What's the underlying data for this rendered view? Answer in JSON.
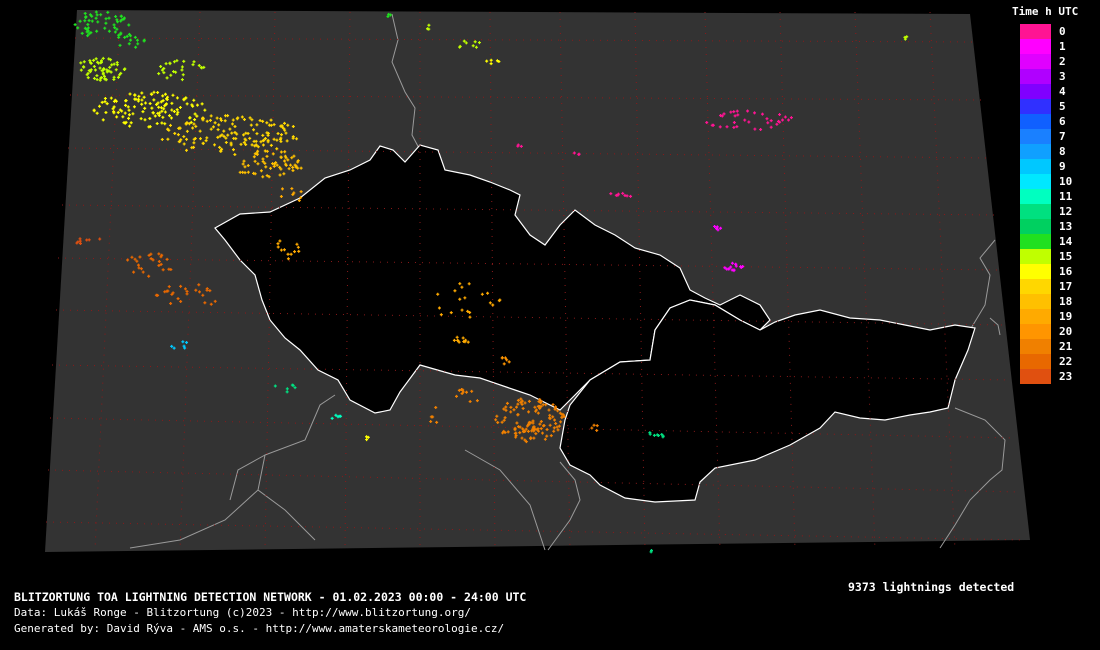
{
  "legend": {
    "title": "Time h UTC",
    "hours": [
      {
        "label": "0",
        "color": "#ff1493"
      },
      {
        "label": "1",
        "color": "#ff00ff"
      },
      {
        "label": "2",
        "color": "#e000ff"
      },
      {
        "label": "3",
        "color": "#b000ff"
      },
      {
        "label": "4",
        "color": "#8000ff"
      },
      {
        "label": "5",
        "color": "#3030ff"
      },
      {
        "label": "6",
        "color": "#1060ff"
      },
      {
        "label": "7",
        "color": "#1a80ff"
      },
      {
        "label": "8",
        "color": "#10a0ff"
      },
      {
        "label": "9",
        "color": "#00c8ff"
      },
      {
        "label": "10",
        "color": "#00e8ff"
      },
      {
        "label": "11",
        "color": "#00ffc0"
      },
      {
        "label": "12",
        "color": "#00e080"
      },
      {
        "label": "13",
        "color": "#00d060"
      },
      {
        "label": "14",
        "color": "#20e020"
      },
      {
        "label": "15",
        "color": "#c0ff00"
      },
      {
        "label": "16",
        "color": "#ffff00"
      },
      {
        "label": "17",
        "color": "#ffd700"
      },
      {
        "label": "18",
        "color": "#ffc000"
      },
      {
        "label": "19",
        "color": "#ffaa00"
      },
      {
        "label": "20",
        "color": "#ff9500"
      },
      {
        "label": "21",
        "color": "#f08000"
      },
      {
        "label": "22",
        "color": "#e86800"
      },
      {
        "label": "23",
        "color": "#e05010"
      }
    ]
  },
  "summary": {
    "count_text": "9373 lightnings detected"
  },
  "footer": {
    "title": "BLITZORTUNG TOA LIGHTNING DETECTION NETWORK - 01.02.2023  00:00 - 24:00 UTC",
    "data_line": "Data: Lukáš Ronge - Blitzortung (c)2023  -  http://www.blitzortung.org/",
    "generated_line": "Generated by: David Rýva - AMS o.s.  -  http://www.amaterskameteorologie.cz/"
  },
  "map": {
    "background_color": "#333333",
    "border_color": "#9a9a9a",
    "highlight_border_color": "#ffffff",
    "grid_color": "#8b1a1a"
  }
}
